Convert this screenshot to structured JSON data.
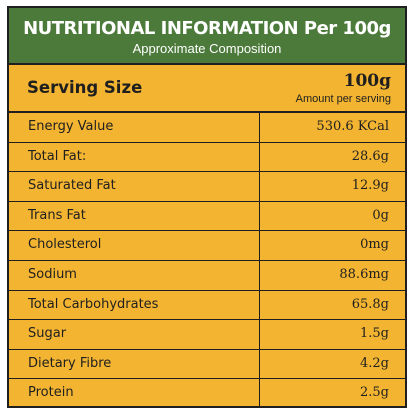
{
  "header": {
    "title": "NUTRITIONAL INFORMATION Per 100g",
    "subtitle": "Approximate Composition"
  },
  "serving": {
    "label": "Serving Size",
    "value": "100g",
    "note": "Amount per serving"
  },
  "rows": [
    {
      "name": "Energy Value",
      "value": "530.6 KCal"
    },
    {
      "name": "Total Fat:",
      "value": "28.6g"
    },
    {
      "name": "Saturated Fat",
      "value": "12.9g"
    },
    {
      "name": "Trans Fat",
      "value": "0g"
    },
    {
      "name": "Cholesterol",
      "value": "0mg"
    },
    {
      "name": "Sodium",
      "value": "88.6mg"
    },
    {
      "name": "Total Carbohydrates",
      "value": "65.8g"
    },
    {
      "name": "Sugar",
      "value": "1.5g"
    },
    {
      "name": "Dietary Fibre",
      "value": "4.2g"
    },
    {
      "name": "Protein",
      "value": "2.5g"
    }
  ],
  "colors": {
    "banner": "#4b7a3a",
    "panel": "#f2b431",
    "border": "#1f1f1f"
  }
}
